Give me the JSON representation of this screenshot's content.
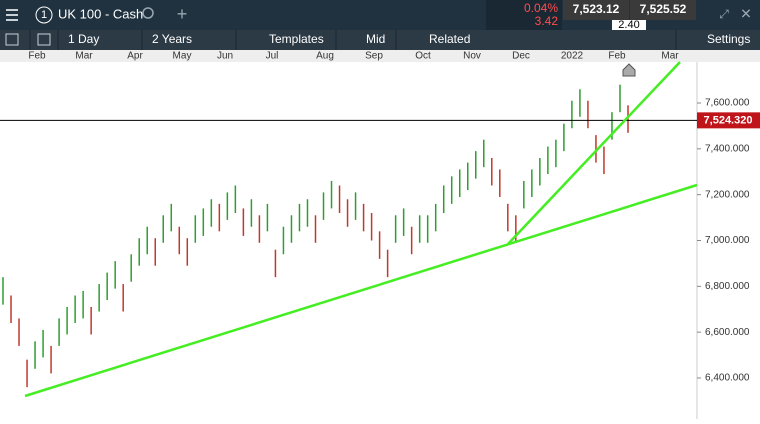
{
  "toolbar": {
    "menu_number": "1",
    "instrument": "UK 100 - Cash",
    "change_pct": "0.04%",
    "change_pts": "3.42",
    "sell": "7,523.12",
    "spread": "2.40",
    "buy": "7,525.52"
  },
  "controls": {
    "interval": "1 Day",
    "range": "2 Years",
    "templates": "Templates",
    "price_type": "Mid",
    "related": "Related",
    "settings": "Settings"
  },
  "chart_data": {
    "type": "ohlc",
    "categories": [
      "Feb",
      "Mar",
      "Apr",
      "May",
      "Jun",
      "Jul",
      "Aug",
      "Sep",
      "Oct",
      "Nov",
      "Dec",
      "2022",
      "Feb",
      "Mar"
    ],
    "lows": [
      6720,
      6640,
      6540,
      6360,
      6440,
      6490,
      6420,
      6540,
      6590,
      6640,
      6660,
      6590,
      6690,
      6740,
      6790,
      6690,
      6820,
      6890,
      6940,
      6890,
      6990,
      7040,
      6940,
      6890,
      6990,
      7020,
      7060,
      7040,
      7090,
      7120,
      7020,
      7060,
      6990,
      7040,
      6840,
      6940,
      6990,
      7040,
      7060,
      6990,
      7090,
      7140,
      7120,
      7060,
      7090,
      7040,
      7000,
      6920,
      6840,
      6990,
      7020,
      6940,
      6990,
      6990,
      7040,
      7120,
      7160,
      7190,
      7220,
      7270,
      7320,
      7240,
      7190,
      7040,
      6990,
      7140,
      7190,
      7240,
      7290,
      7320,
      7390,
      7490,
      7540,
      7490,
      7340,
      7290,
      7440,
      7560,
      7470
    ],
    "highs": [
      6840,
      6760,
      6660,
      6480,
      6560,
      6610,
      6540,
      6660,
      6710,
      6760,
      6780,
      6710,
      6810,
      6860,
      6910,
      6810,
      6940,
      7010,
      7060,
      7010,
      7110,
      7160,
      7060,
      7010,
      7110,
      7140,
      7180,
      7160,
      7210,
      7240,
      7140,
      7180,
      7110,
      7160,
      6960,
      7060,
      7110,
      7160,
      7180,
      7110,
      7210,
      7260,
      7240,
      7180,
      7210,
      7160,
      7120,
      7040,
      6960,
      7110,
      7140,
      7060,
      7110,
      7110,
      7160,
      7240,
      7280,
      7310,
      7340,
      7390,
      7440,
      7360,
      7310,
      7160,
      7110,
      7260,
      7310,
      7360,
      7410,
      7440,
      7510,
      7610,
      7660,
      7610,
      7460,
      7410,
      7560,
      7680,
      7590
    ],
    "up_color": "#2f9e2f",
    "down_color": "#c0392b",
    "ylim": [
      6221,
      7779
    ],
    "yticks": [
      {
        "value": 6400,
        "label": "6,400.000"
      },
      {
        "value": 6600,
        "label": "6,600.000"
      },
      {
        "value": 6800,
        "label": "6,800.000"
      },
      {
        "value": 7000,
        "label": "7,000.000"
      },
      {
        "value": 7200,
        "label": "7,200.000"
      },
      {
        "value": 7400,
        "label": "7,400.000"
      },
      {
        "value": 7600,
        "label": "7,600.000"
      }
    ],
    "current_price": {
      "value": 7524.32,
      "label": "7,524.320"
    }
  }
}
